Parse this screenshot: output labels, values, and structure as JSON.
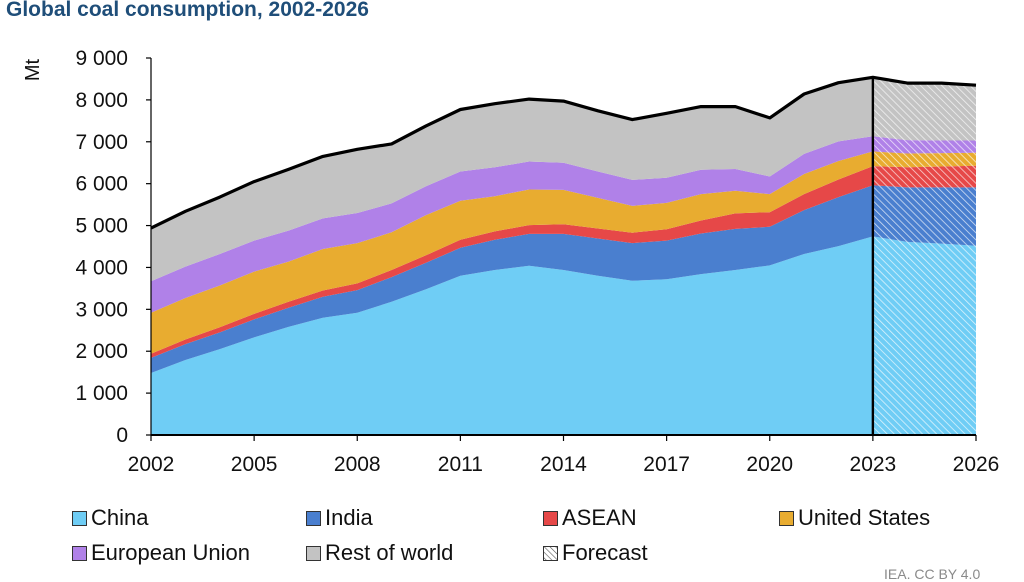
{
  "chart_data": {
    "type": "area",
    "title": "Global coal consumption, 2002-2026",
    "ylabel": "Mt",
    "xlabel": "",
    "ylim": [
      0,
      9000
    ],
    "yticks": [
      0,
      1000,
      2000,
      3000,
      4000,
      5000,
      6000,
      7000,
      8000,
      9000
    ],
    "ytick_labels": [
      "0",
      "1 000",
      "2 000",
      "3 000",
      "4 000",
      "5 000",
      "6 000",
      "7 000",
      "8 000",
      "9 000"
    ],
    "xlim": [
      2002,
      2026
    ],
    "xtick_labels": [
      "2002",
      "2005",
      "2008",
      "2011",
      "2014",
      "2017",
      "2020",
      "2023",
      "2026"
    ],
    "x": [
      2002,
      2003,
      2004,
      2005,
      2006,
      2007,
      2008,
      2009,
      2010,
      2011,
      2012,
      2013,
      2014,
      2015,
      2016,
      2017,
      2018,
      2019,
      2020,
      2021,
      2022,
      2023,
      2024,
      2025,
      2026
    ],
    "stacked": true,
    "forecast_from": 2023,
    "grid": false,
    "legend_position": "bottom",
    "series": [
      {
        "name": "China",
        "color": "#6fcdf5",
        "values": [
          1480,
          1790,
          2050,
          2330,
          2580,
          2800,
          2920,
          3180,
          3480,
          3800,
          3940,
          4040,
          3940,
          3800,
          3680,
          3720,
          3840,
          3940,
          4050,
          4320,
          4510,
          4740,
          4610,
          4570,
          4520
        ]
      },
      {
        "name": "India",
        "color": "#4a7fcf",
        "values": [
          360,
          380,
          400,
          430,
          460,
          500,
          540,
          590,
          630,
          670,
          720,
          760,
          860,
          890,
          900,
          920,
          970,
          980,
          920,
          1050,
          1170,
          1220,
          1300,
          1340,
          1390
        ]
      },
      {
        "name": "ASEAN",
        "color": "#e64848",
        "values": [
          100,
          110,
          120,
          130,
          140,
          150,
          160,
          170,
          180,
          190,
          200,
          210,
          230,
          240,
          250,
          270,
          310,
          370,
          350,
          380,
          420,
          460,
          480,
          500,
          520
        ]
      },
      {
        "name": "United States",
        "color": "#e8ac30",
        "values": [
          980,
          990,
          1000,
          1010,
          960,
          990,
          960,
          900,
          960,
          930,
          840,
          850,
          820,
          730,
          640,
          630,
          630,
          540,
          430,
          480,
          440,
          350,
          330,
          320,
          310
        ]
      },
      {
        "name": "European Union",
        "color": "#b081e8",
        "values": [
          750,
          750,
          750,
          740,
          740,
          730,
          720,
          690,
          690,
          700,
          690,
          670,
          650,
          630,
          620,
          600,
          580,
          520,
          420,
          480,
          470,
          360,
          320,
          300,
          290
        ]
      },
      {
        "name": "Rest of world",
        "color": "#c3c3c3",
        "values": [
          1270,
          1320,
          1360,
          1410,
          1460,
          1480,
          1520,
          1420,
          1440,
          1480,
          1520,
          1490,
          1470,
          1450,
          1440,
          1540,
          1510,
          1490,
          1400,
          1430,
          1400,
          1410,
          1360,
          1370,
          1320
        ]
      }
    ]
  },
  "legend": {
    "items": [
      {
        "label": "China",
        "color": "#6fcdf5"
      },
      {
        "label": "India",
        "color": "#4a7fcf"
      },
      {
        "label": "ASEAN",
        "color": "#e64848"
      },
      {
        "label": "United States",
        "color": "#e8ac30"
      },
      {
        "label": "European Union",
        "color": "#b081e8"
      },
      {
        "label": "Rest of world",
        "color": "#c3c3c3"
      },
      {
        "label": "Forecast",
        "color": "#ffffff"
      }
    ]
  },
  "source_note": "IEA. CC BY 4.0"
}
